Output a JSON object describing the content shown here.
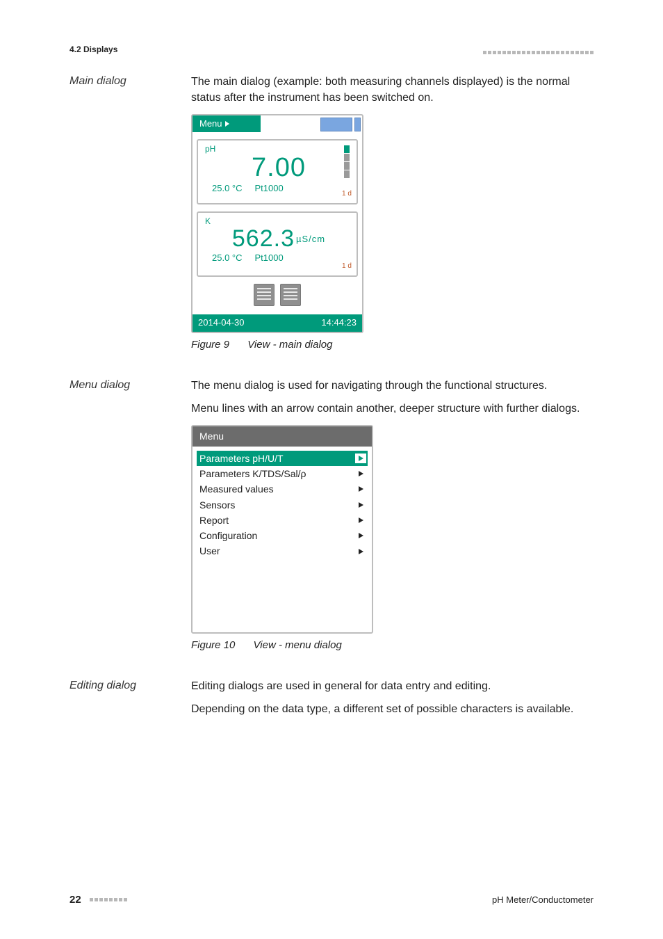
{
  "header": {
    "section_label": "4.2 Displays",
    "decor_count": 23
  },
  "main_dialog": {
    "side_label": "Main dialog",
    "intro": "The main dialog (example: both measuring channels displayed) is the normal status after the instrument has been switched on.",
    "device": {
      "menu_btn": "Menu",
      "panel_ph": {
        "label": "pH",
        "value": "7.00",
        "temp": "25.0 °C",
        "probe": "Pt1000",
        "drift": "1 d",
        "signal_lit": 4
      },
      "panel_k": {
        "label": "K",
        "value": "562.3",
        "unit": "µS/cm",
        "temp": "25.0 °C",
        "probe": "Pt1000",
        "drift": "1 d",
        "signal_lit": 0
      },
      "status": {
        "date": "2014-04-30",
        "time": "14:44:23"
      }
    },
    "caption_num": "Figure 9",
    "caption_text": "View - main dialog"
  },
  "menu_dialog": {
    "side_label": "Menu dialog",
    "p1": "The menu dialog is used for navigating through the functional structures.",
    "p2": "Menu lines with an arrow contain another, deeper structure with further dialogs.",
    "device": {
      "title": "Menu",
      "items": [
        {
          "label": "Parameters pH/U/T",
          "selected": true
        },
        {
          "label": "Parameters K/TDS/Sal/ρ",
          "selected": false
        },
        {
          "label": "Measured values",
          "selected": false
        },
        {
          "label": "Sensors",
          "selected": false
        },
        {
          "label": "Report",
          "selected": false
        },
        {
          "label": "Configuration",
          "selected": false
        },
        {
          "label": "User",
          "selected": false
        }
      ]
    },
    "caption_num": "Figure 10",
    "caption_text": "View - menu dialog"
  },
  "editing_dialog": {
    "side_label": "Editing dialog",
    "p1": "Editing dialogs are used in general for data entry and editing.",
    "p2": "Depending on the data type, a different set of possible characters is available."
  },
  "footer": {
    "page_number": "22",
    "decor_count": 8,
    "doc_title": "pH Meter/Conductometer"
  },
  "colors": {
    "brand_green": "#009a7b",
    "bar_blue": "#7aa6e0",
    "frame_gray": "#bdbdbd",
    "decor_gray": "#b8b8b8",
    "menu_title_bg": "#6c6c6c"
  }
}
